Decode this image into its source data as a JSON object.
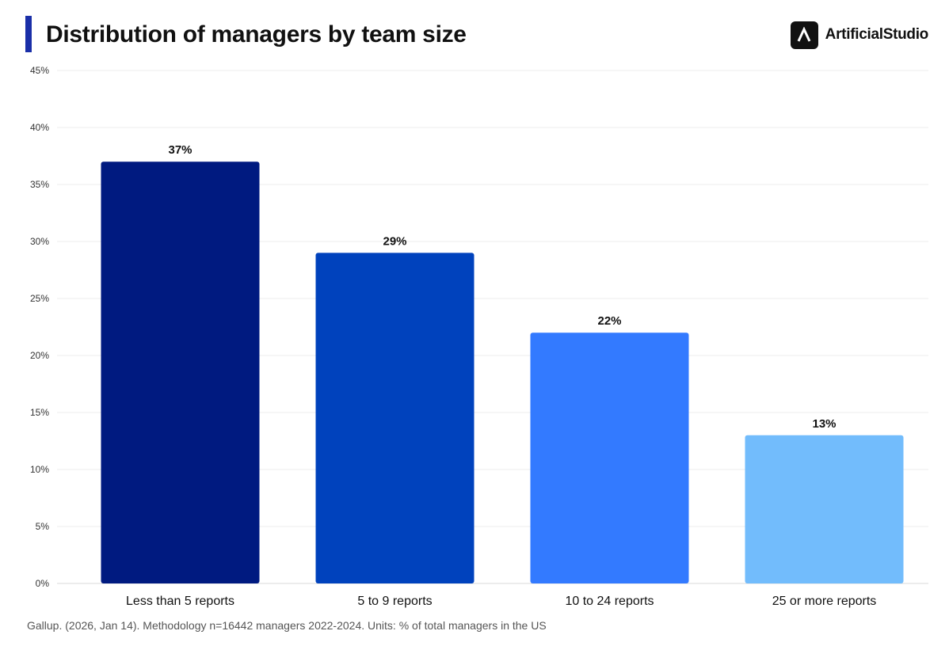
{
  "header": {
    "title": "Distribution of managers by team size",
    "accent_color": "#1a2fa8"
  },
  "brand": {
    "name": "ArtificialStudio",
    "logo_icon": "artificialstudio-logo-icon"
  },
  "chart_data": {
    "type": "bar",
    "title": "Distribution of managers by team size",
    "categories": [
      "Less than 5 reports",
      "5 to 9 reports",
      "10 to 24 reports",
      "25 or more reports"
    ],
    "values": [
      37,
      29,
      22,
      13
    ],
    "value_labels": [
      "37%",
      "29%",
      "22%",
      "13%"
    ],
    "colors": [
      "#001a80",
      "#0042bd",
      "#337aff",
      "#72bcfc"
    ],
    "ylim": [
      0,
      45
    ],
    "yticks": [
      0,
      5,
      10,
      15,
      20,
      25,
      30,
      35,
      40,
      45
    ],
    "ytick_labels": [
      "0%",
      "5%",
      "10%",
      "15%",
      "20%",
      "25%",
      "30%",
      "35%",
      "40%",
      "45%"
    ],
    "xlabel": "",
    "ylabel": "",
    "grid": true,
    "legend": false
  },
  "footer": {
    "source": "Gallup. (2026, Jan 14). Methodology n=16442 managers 2022-2024. Units: % of total managers in the US"
  }
}
